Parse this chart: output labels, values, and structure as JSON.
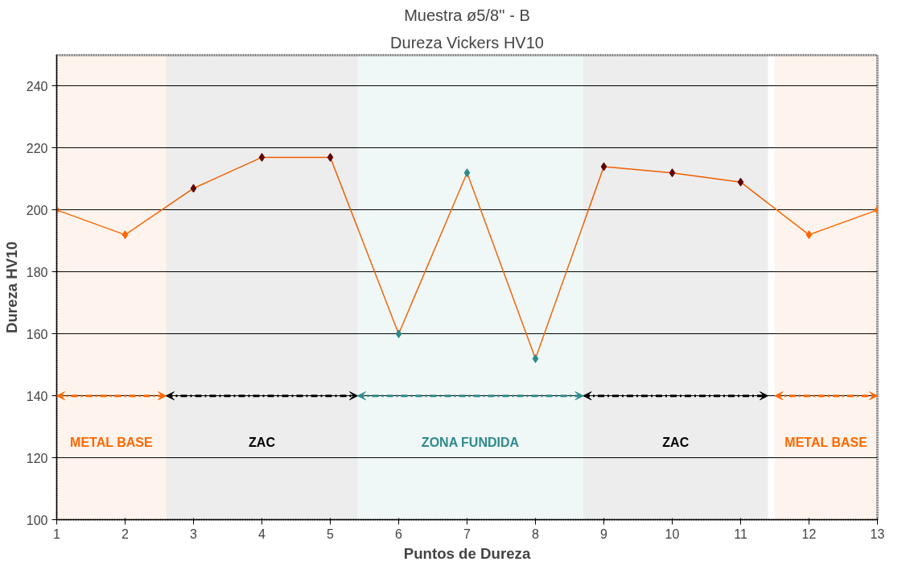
{
  "chart_data": {
    "type": "line",
    "title": "Muestra ø5/8'' - B",
    "subtitle": "Dureza Vickers HV10",
    "xlabel": "Puntos de Dureza",
    "ylabel": "Dureza HV10",
    "x": [
      1,
      2,
      3,
      4,
      5,
      6,
      7,
      8,
      9,
      10,
      11,
      12,
      13
    ],
    "series": [
      {
        "color": "#ff6600",
        "colors": [
          "#ff6600",
          "#ff6600",
          "#660000",
          "#660000",
          "#660000",
          "#2e8b8b",
          "#2e8b8b",
          "#2e8b8b",
          "#660000",
          "#660000",
          "#660000",
          "#ff6600",
          "#ff6600"
        ],
        "values": [
          200,
          192,
          207,
          217,
          217,
          160,
          212,
          152,
          214,
          212,
          209,
          192,
          200
        ]
      }
    ],
    "xlim": [
      1,
      13
    ],
    "xticks": [
      1,
      2,
      3,
      4,
      5,
      6,
      7,
      8,
      9,
      10,
      11,
      12,
      13
    ],
    "ylim": [
      100,
      250
    ],
    "yticks": [
      100,
      120,
      140,
      160,
      180,
      200,
      220,
      240
    ],
    "grid": "y",
    "marker": "diamond",
    "line_style": "solid",
    "bands": [
      {
        "axis": "x",
        "from": 1,
        "to": 2.6,
        "label": "METAL BASE",
        "color": "#ff6600"
      },
      {
        "axis": "x",
        "from": 2.6,
        "to": 5.4,
        "label": "ZAC",
        "color": "#000000"
      },
      {
        "axis": "x",
        "from": 5.4,
        "to": 8.7,
        "label": "ZONA FUNDIDA",
        "color": "#2e8b8b"
      },
      {
        "axis": "x",
        "from": 8.7,
        "to": 11.4,
        "label": "ZAC",
        "color": "#000000"
      },
      {
        "axis": "x",
        "from": 11.5,
        "to": 13,
        "label": "METAL BASE",
        "color": "#ff6600"
      }
    ]
  }
}
